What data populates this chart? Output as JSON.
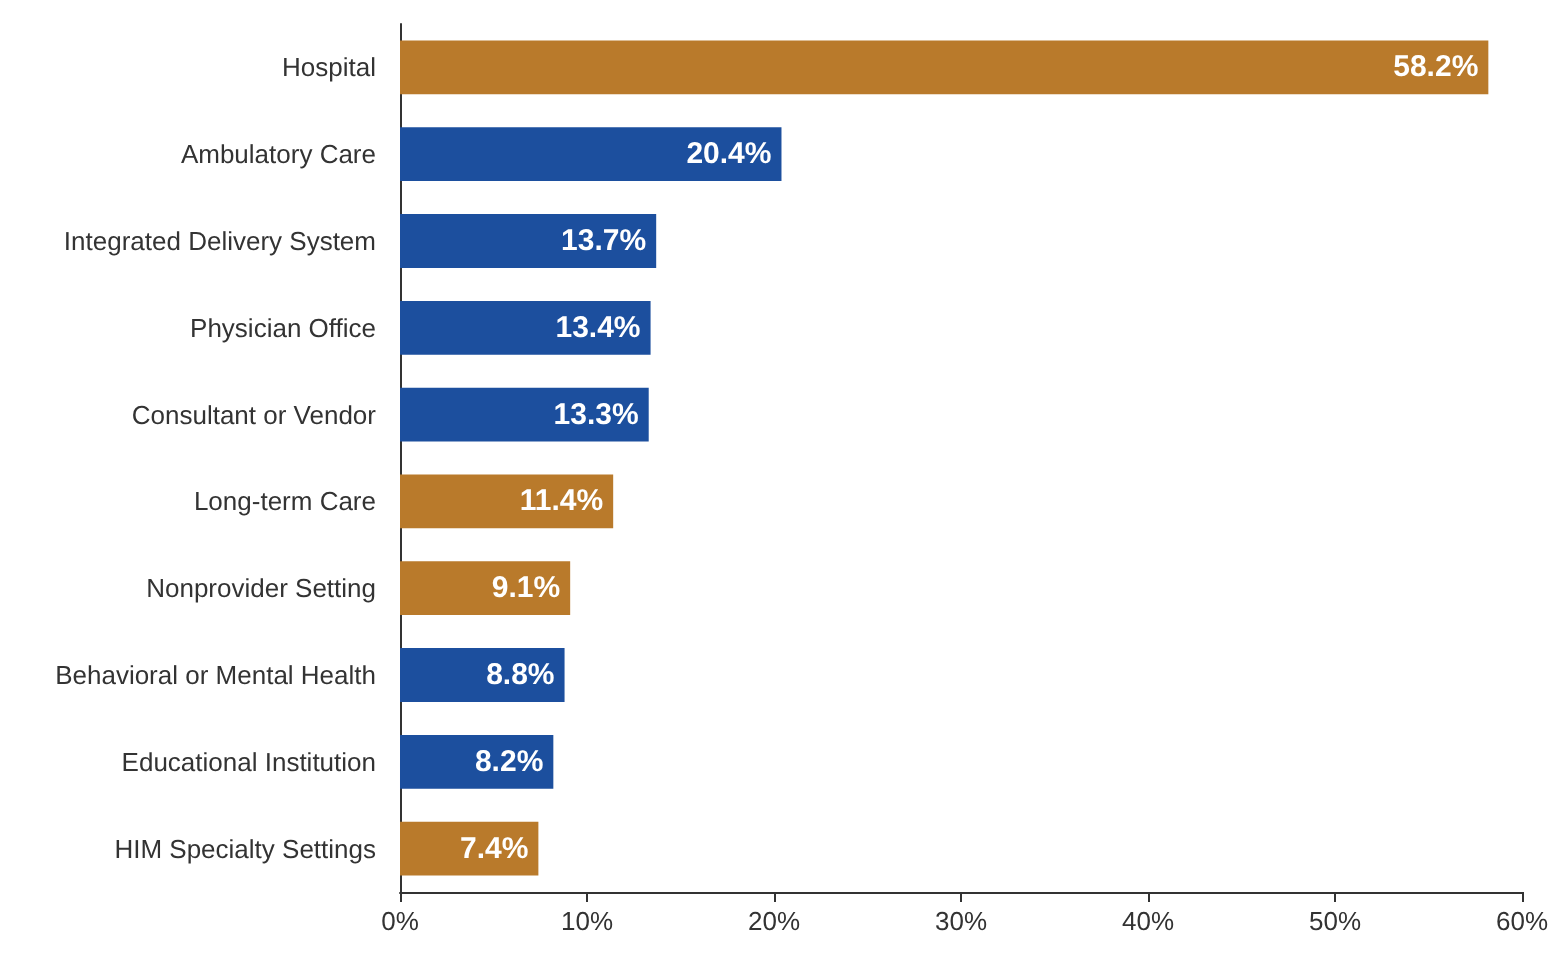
{
  "chart_data": {
    "type": "bar",
    "orientation": "horizontal",
    "categories": [
      "Hospital",
      "Ambulatory Care",
      "Integrated Delivery System",
      "Physician Office",
      "Consultant or Vendor",
      "Long-term Care",
      "Nonprovider Setting",
      "Behavioral or Mental Health",
      "Educational Institution",
      "HIM Specialty Settings"
    ],
    "values": [
      58.2,
      20.4,
      13.7,
      13.4,
      13.3,
      11.4,
      9.1,
      8.8,
      8.2,
      7.4
    ],
    "colors": [
      "#b97a2b",
      "#1c4f9e",
      "#1c4f9e",
      "#1c4f9e",
      "#1c4f9e",
      "#b97a2b",
      "#b97a2b",
      "#1c4f9e",
      "#1c4f9e",
      "#b97a2b"
    ],
    "value_labels": [
      "58.2%",
      "20.4%",
      "13.7%",
      "13.4%",
      "13.3%",
      "11.4%",
      "9.1%",
      "8.8%",
      "8.2%",
      "7.4%"
    ],
    "xlim": [
      0,
      60
    ],
    "xticks": [
      {
        "value": 0,
        "label": "0%"
      },
      {
        "value": 10,
        "label": "10%"
      },
      {
        "value": 20,
        "label": "20%"
      },
      {
        "value": 30,
        "label": "30%"
      },
      {
        "value": 40,
        "label": "40%"
      },
      {
        "value": 50,
        "label": "50%"
      },
      {
        "value": 60,
        "label": "60%"
      }
    ],
    "grid": false
  }
}
